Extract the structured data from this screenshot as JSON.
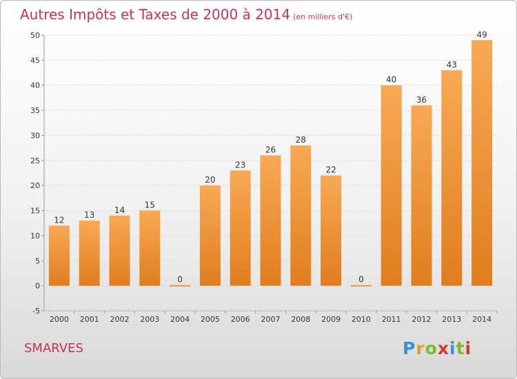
{
  "header": {
    "title": "Autres Impôts et Taxes de 2000 à 2014",
    "unit": "(en milliers d'€)"
  },
  "footer": {
    "commune": "SMARVES",
    "logo_letters": [
      "P",
      "r",
      "o",
      "x",
      "i",
      "t",
      "i"
    ]
  },
  "colors": {
    "bar_light": "#f8a954",
    "bar_dark": "#e07d1e",
    "title": "#c8325a",
    "grid": "#d6d6d6"
  },
  "chart_data": {
    "type": "bar",
    "categories": [
      "2000",
      "2001",
      "2002",
      "2003",
      "2004",
      "2005",
      "2006",
      "2007",
      "2008",
      "2009",
      "2010",
      "2011",
      "2012",
      "2013",
      "2014"
    ],
    "values": [
      12,
      13,
      14,
      15,
      0,
      20,
      23,
      26,
      28,
      22,
      0,
      40,
      36,
      43,
      49
    ],
    "title": "Autres Impôts et Taxes de 2000 à 2014",
    "ylim": [
      -5,
      50
    ],
    "yticks": [
      -5,
      0,
      5,
      10,
      15,
      20,
      25,
      30,
      35,
      40,
      45,
      50
    ],
    "grid": true,
    "legend": "none"
  }
}
